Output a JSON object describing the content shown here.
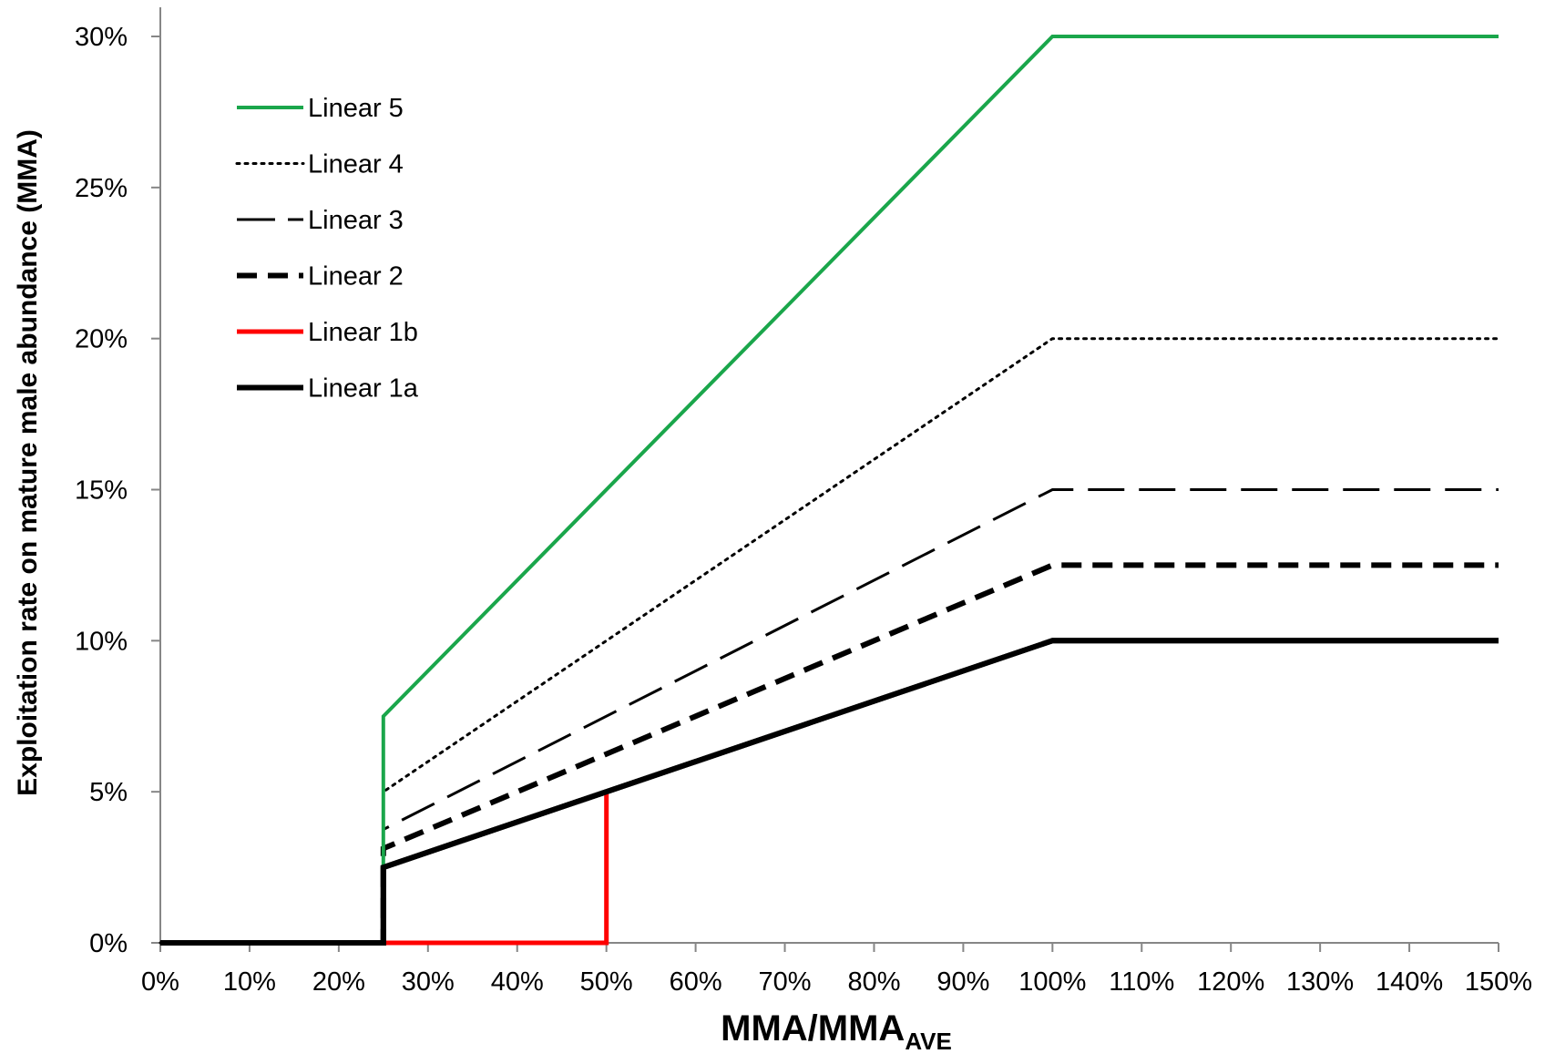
{
  "chart_data": {
    "type": "line",
    "title": "",
    "xlabel": {
      "main": "MMA/MMA",
      "subscript": "AVE"
    },
    "ylabel": "Exploitation rate on mature male abundance (MMA)",
    "xlim": [
      0,
      1.5
    ],
    "ylim": [
      0,
      0.3
    ],
    "x_ticks": [
      0,
      0.1,
      0.2,
      0.3,
      0.4,
      0.5,
      0.6,
      0.7,
      0.8,
      0.9,
      1.0,
      1.1,
      1.2,
      1.3,
      1.4,
      1.5
    ],
    "x_tick_labels": [
      "0%",
      "10%",
      "20%",
      "30%",
      "40%",
      "50%",
      "60%",
      "70%",
      "80%",
      "90%",
      "100%",
      "110%",
      "120%",
      "130%",
      "140%",
      "150%"
    ],
    "y_ticks": [
      0,
      0.05,
      0.1,
      0.15,
      0.2,
      0.25,
      0.3
    ],
    "y_tick_labels": [
      "0%",
      "5%",
      "10%",
      "15%",
      "20%",
      "25%",
      "30%"
    ],
    "grid": false,
    "legend_position": "top-left",
    "series": [
      {
        "name": "Linear 5",
        "color": "#1aa64b",
        "style": "solid",
        "width": 4,
        "points": [
          [
            0,
            0
          ],
          [
            0.25,
            0
          ],
          [
            0.25,
            0.075
          ],
          [
            1.0,
            0.3
          ],
          [
            1.5,
            0.3
          ]
        ]
      },
      {
        "name": "Linear 4",
        "color": "#000000",
        "style": "dotted",
        "width": 3,
        "points": [
          [
            0,
            0
          ],
          [
            0.25,
            0
          ],
          [
            0.25,
            0.05
          ],
          [
            1.0,
            0.2
          ],
          [
            1.5,
            0.2
          ]
        ]
      },
      {
        "name": "Linear 3",
        "color": "#000000",
        "style": "dashed",
        "width": 3,
        "points": [
          [
            0,
            0
          ],
          [
            0.25,
            0
          ],
          [
            0.25,
            0.0375
          ],
          [
            1.0,
            0.15
          ],
          [
            1.5,
            0.15
          ]
        ]
      },
      {
        "name": "Linear 2",
        "color": "#000000",
        "style": "bold-dashed",
        "width": 6,
        "points": [
          [
            0,
            0
          ],
          [
            0.25,
            0
          ],
          [
            0.25,
            0.03125
          ],
          [
            1.0,
            0.125
          ],
          [
            1.5,
            0.125
          ]
        ]
      },
      {
        "name": "Linear 1b",
        "color": "#ff0000",
        "style": "solid",
        "width": 5,
        "points": [
          [
            0,
            0
          ],
          [
            0.5,
            0
          ],
          [
            0.5,
            0.05
          ],
          [
            1.0,
            0.1
          ],
          [
            1.5,
            0.1
          ]
        ]
      },
      {
        "name": "Linear 1a",
        "color": "#000000",
        "style": "solid",
        "width": 6,
        "points": [
          [
            0,
            0
          ],
          [
            0.25,
            0
          ],
          [
            0.25,
            0.025
          ],
          [
            1.0,
            0.1
          ],
          [
            1.5,
            0.1
          ]
        ]
      }
    ]
  }
}
